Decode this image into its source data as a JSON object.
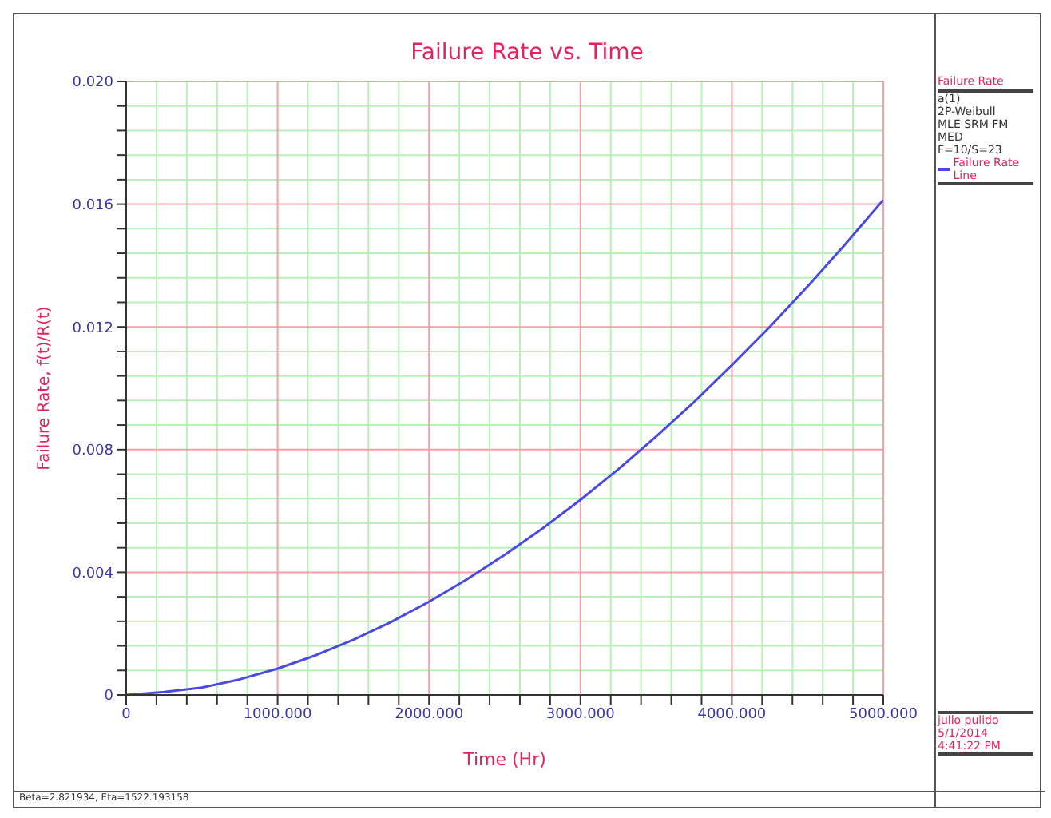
{
  "chart_data": {
    "type": "line",
    "title": "Failure Rate vs. Time",
    "xlabel": "Time (Hr)",
    "ylabel": "Failure Rate, f(t)/R(t)",
    "legend_title": "Failure Rate",
    "annotations": [
      "a(1)",
      "2P-Weibull",
      "MLE SRM FM MED",
      "F=10/S=23",
      "julio pulido",
      "5/1/2014",
      "4:41:22 PM",
      "Beta=2.821934, Eta=1522.193158"
    ],
    "x": [
      0,
      250,
      500,
      750,
      1000,
      1250,
      1500,
      1750,
      2000,
      2250,
      2500,
      2750,
      3000,
      3250,
      3500,
      3750,
      4000,
      4250,
      4500,
      4750,
      5000
    ],
    "series": [
      {
        "name": "Failure Rate Line",
        "color": "#4a4ae0",
        "values": [
          0,
          0.0001,
          0.00024,
          0.00051,
          0.00086,
          0.00129,
          0.0018,
          0.00238,
          0.00304,
          0.00377,
          0.00457,
          0.00543,
          0.00636,
          0.00736,
          0.00843,
          0.00955,
          0.01075,
          0.012,
          0.01332,
          0.0147,
          0.01614
        ]
      }
    ],
    "xlim": [
      0,
      5000
    ],
    "xticks": [
      0,
      {
        "value": 200,
        "label": null
      },
      {
        "value": 400,
        "label": null
      },
      {
        "value": 600,
        "label": null
      },
      {
        "value": 800,
        "label": null
      },
      {
        "value": 1000,
        "label": "1000.000"
      },
      {
        "value": 1200,
        "label": null
      },
      {
        "value": 1400,
        "label": null
      },
      {
        "value": 1600,
        "label": null
      },
      {
        "value": 1800,
        "label": null
      },
      {
        "value": 2000,
        "label": "2000.000"
      },
      {
        "value": 2200,
        "label": null
      },
      {
        "value": 2400,
        "label": null
      },
      {
        "value": 2600,
        "label": null
      },
      {
        "value": 2800,
        "label": null
      },
      {
        "value": 3000,
        "label": "3000.000"
      },
      {
        "value": 3200,
        "label": null
      },
      {
        "value": 3400,
        "label": null
      },
      {
        "value": 3600,
        "label": null
      },
      {
        "value": 3800,
        "label": null
      },
      {
        "value": 4000,
        "label": "4000.000"
      },
      {
        "value": 4200,
        "label": null
      },
      {
        "value": 4400,
        "label": null
      },
      {
        "value": 4600,
        "label": null
      },
      {
        "value": 4800,
        "label": null
      },
      {
        "value": 5000,
        "label": "5000.000"
      }
    ],
    "ylim": [
      0,
      0.02
    ],
    "yticks": [
      0,
      {
        "value": 0.0008,
        "label": null
      },
      {
        "value": 0.0016,
        "label": null
      },
      {
        "value": 0.0024,
        "label": null
      },
      {
        "value": 0.0032,
        "label": null
      },
      0.004,
      {
        "value": 0.0048,
        "label": null
      },
      {
        "value": 0.0056,
        "label": null
      },
      {
        "value": 0.0064,
        "label": null
      },
      {
        "value": 0.0072,
        "label": null
      },
      0.008,
      {
        "value": 0.0088,
        "label": null
      },
      {
        "value": 0.0096,
        "label": null
      },
      {
        "value": 0.0104,
        "label": null
      },
      {
        "value": 0.0112,
        "label": null
      },
      0.012,
      {
        "value": 0.0128,
        "label": null
      },
      {
        "value": 0.0136,
        "label": null
      },
      {
        "value": 0.0144,
        "label": null
      },
      {
        "value": 0.0152,
        "label": null
      },
      0.016,
      {
        "value": 0.0168,
        "label": null
      },
      {
        "value": 0.0176,
        "label": null
      },
      {
        "value": 0.0184,
        "label": null
      },
      {
        "value": 0.0192,
        "label": null
      },
      {
        "value": 0.02,
        "label": "0.020"
      }
    ],
    "grid": true,
    "legend": "right",
    "marker": "none",
    "line_style": "solid"
  }
}
